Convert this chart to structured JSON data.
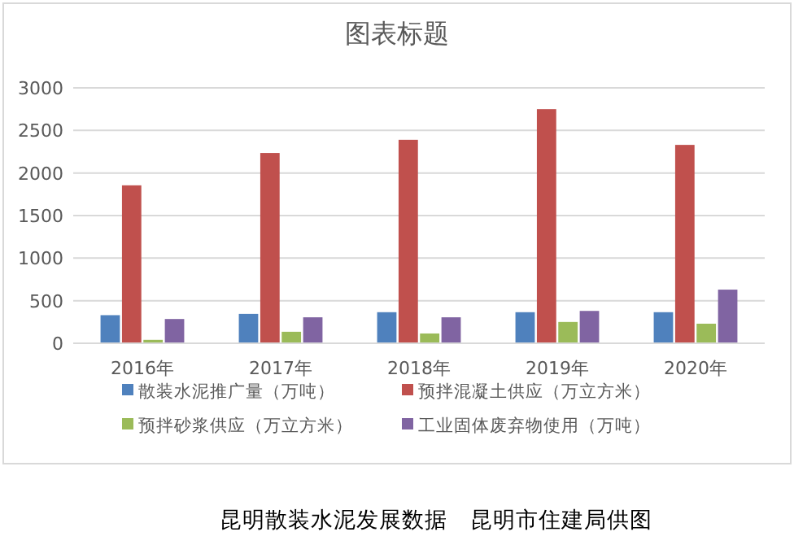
{
  "chart_data": {
    "type": "bar",
    "title": "图表标题",
    "categories": [
      "2016年",
      "2017年",
      "2018年",
      "2019年",
      "2020年"
    ],
    "series": [
      {
        "name": "散装水泥推广量（万吨）",
        "color": "#4f81bd",
        "values": [
          330,
          345,
          365,
          365,
          365
        ]
      },
      {
        "name": "预拌混凝土供应（万立方米）",
        "color": "#c0504d",
        "values": [
          1855,
          2235,
          2390,
          2750,
          2330
        ]
      },
      {
        "name": "预拌砂浆供应（万立方米）",
        "color": "#9bbb59",
        "values": [
          40,
          135,
          115,
          250,
          230
        ]
      },
      {
        "name": "工业固体废弃物使用（万吨）",
        "color": "#8064a2",
        "values": [
          285,
          305,
          305,
          380,
          630
        ]
      }
    ],
    "ylim": [
      0,
      3000
    ],
    "yticks": [
      0,
      500,
      1000,
      1500,
      2000,
      2500,
      3000
    ],
    "grid": "y",
    "legend": "bottom",
    "annotations": [
      "昆明散装水泥发展数据　昆明市住建局供图"
    ]
  }
}
